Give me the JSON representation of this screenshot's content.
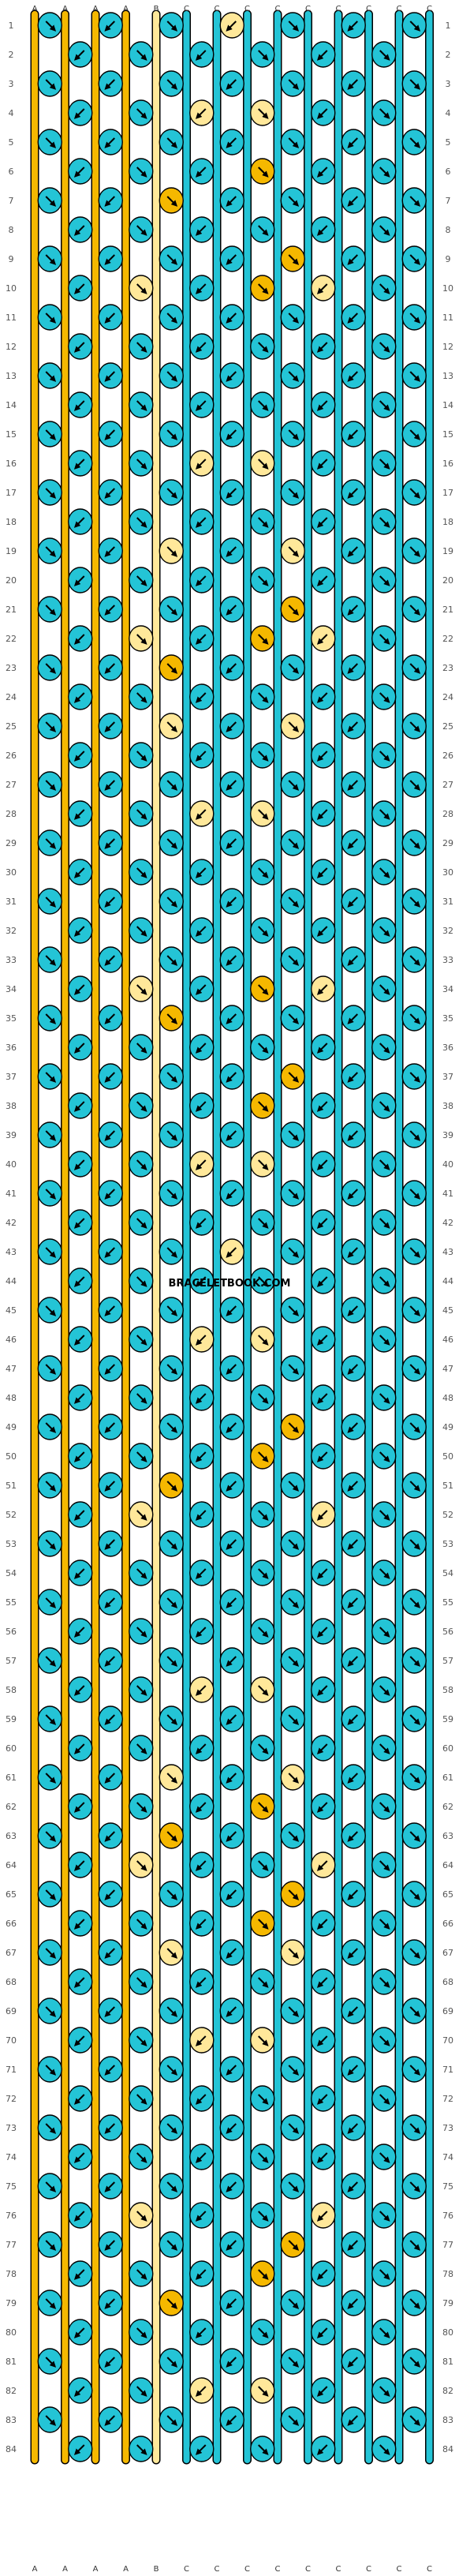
{
  "watermark": "BRACELETBOOK.COM",
  "colors": {
    "A": "#f5b800",
    "B": "#ffe89a",
    "C": "#24c4d6"
  },
  "string_letters": [
    "A",
    "A",
    "A",
    "A",
    "B",
    "C",
    "C",
    "C",
    "C",
    "C",
    "C",
    "C",
    "C",
    "C"
  ],
  "row_labels": [
    "1",
    "2",
    "3",
    "4",
    "5",
    "6",
    "7",
    "8",
    "9",
    "10",
    "11",
    "12",
    "13",
    "14",
    "15",
    "16",
    "17",
    "18",
    "19",
    "20",
    "21",
    "22",
    "23",
    "24",
    "25",
    "26",
    "27",
    "28",
    "29",
    "30",
    "31",
    "32",
    "33",
    "34",
    "35",
    "36",
    "37",
    "38",
    "39",
    "40",
    "41",
    "42",
    "43",
    "44",
    "45",
    "46",
    "47",
    "48",
    "49",
    "50",
    "51",
    "52",
    "53",
    "54",
    "55",
    "56",
    "57",
    "58",
    "59",
    "60",
    "61",
    "62",
    "63",
    "64",
    "65",
    "66",
    "67",
    "68",
    "69",
    "70",
    "71",
    "72",
    "73",
    "74",
    "75",
    "76",
    "77",
    "78",
    "79",
    "80",
    "81",
    "82",
    "83",
    "84"
  ],
  "knot_types": [
    "forward",
    "backward",
    "forward-backward",
    "backward-forward"
  ],
  "knot_colors": [
    "A",
    "B",
    "C"
  ]
}
